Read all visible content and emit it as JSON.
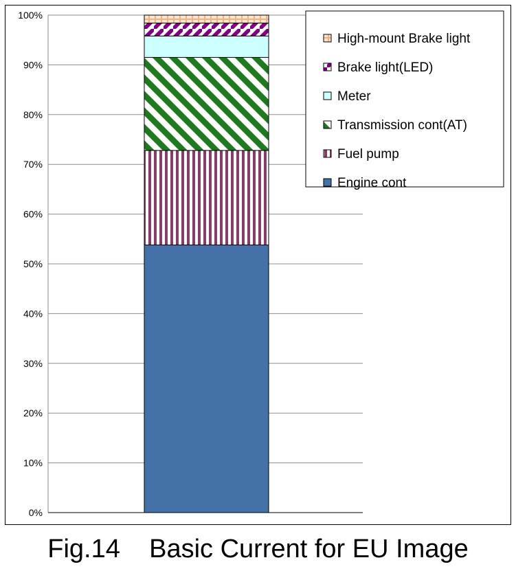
{
  "chart_data": {
    "type": "bar",
    "stacked": true,
    "percent": true,
    "categories": [
      ""
    ],
    "ylim": [
      0,
      100
    ],
    "yticks": [
      "0%",
      "10%",
      "20%",
      "30%",
      "40%",
      "50%",
      "60%",
      "70%",
      "80%",
      "90%",
      "100%"
    ],
    "grid": true,
    "legend_position": "top-right",
    "series": [
      {
        "name": "Engine cont",
        "values": [
          53.8
        ],
        "color": "#4472A8",
        "pattern": "solid"
      },
      {
        "name": "Fuel pump",
        "values": [
          19.0
        ],
        "color": "#8B3A6B",
        "pattern": "vertical-stripes"
      },
      {
        "name": "Transmission cont(AT)",
        "values": [
          18.7
        ],
        "color": "#1E7A1E",
        "pattern": "diagonal-stripes"
      },
      {
        "name": "Meter",
        "values": [
          4.3
        ],
        "color": "#CCFFFF",
        "pattern": "solid"
      },
      {
        "name": "Brake light(LED)",
        "values": [
          2.6
        ],
        "color": "#800080",
        "pattern": "diagonal-stripes"
      },
      {
        "name": "High-mount Brake light",
        "values": [
          1.6
        ],
        "color": "#F5C49A",
        "pattern": "grid"
      }
    ]
  },
  "caption": "Fig.14    Basic Current for EU Image"
}
